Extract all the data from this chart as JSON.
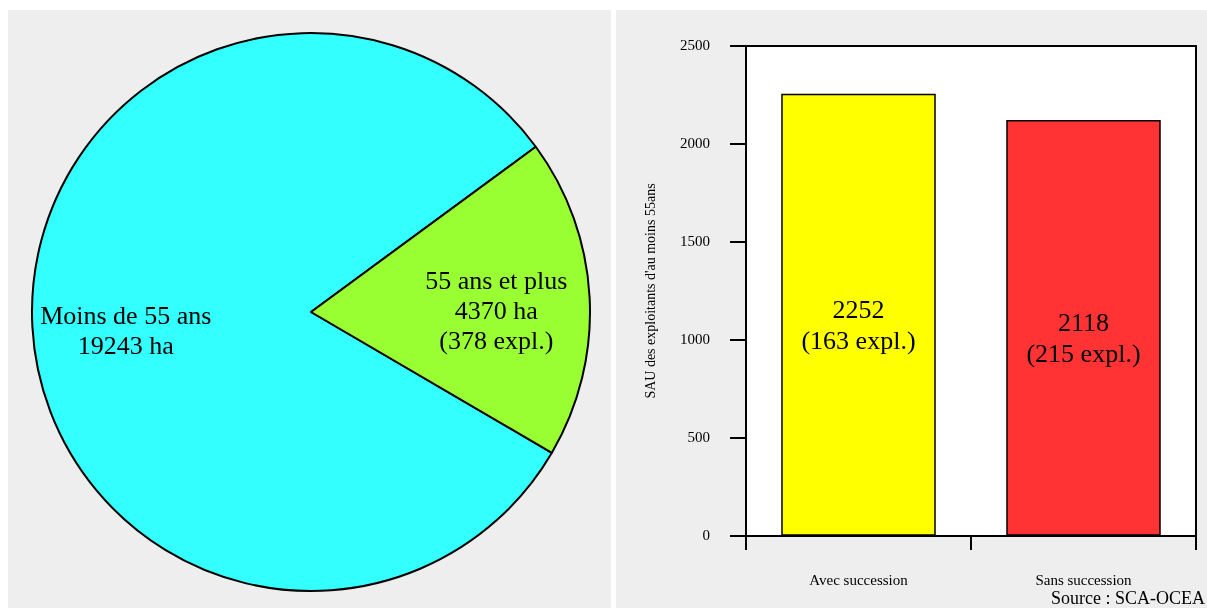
{
  "chart_data": [
    {
      "type": "pie",
      "categories": [
        "Moins de 55 ans",
        "55 ans et plus"
      ],
      "values": [
        19243,
        4370
      ],
      "colors": [
        "#33ffff",
        "#99ff33"
      ],
      "value_labels": [
        "19243 ha",
        "4370 ha\n(378 expl.)"
      ]
    },
    {
      "type": "bar",
      "categories": [
        "Avec succession",
        "Sans succession"
      ],
      "values": [
        2252,
        2118
      ],
      "colors": [
        "#ffff00",
        "#ff3333"
      ],
      "value_labels": [
        "2252\n(163 expl.)",
        "2118\n(215 expl.)"
      ],
      "ylabel": "SAU des exploitants d'au moins 55ans",
      "ylim": [
        0,
        2500
      ],
      "yticks": [
        0,
        500,
        1000,
        1500,
        2000,
        2500
      ],
      "annotations": [
        "Source : SCA-OCEA"
      ]
    }
  ]
}
